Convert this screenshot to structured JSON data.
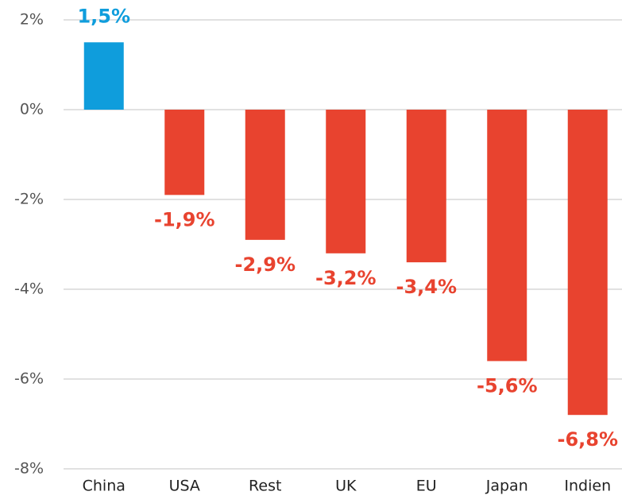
{
  "chart_data": {
    "type": "bar",
    "categories": [
      "China",
      "USA",
      "Rest",
      "UK",
      "EU",
      "Japan",
      "Indien"
    ],
    "values": [
      1.5,
      -1.9,
      -2.9,
      -3.2,
      -3.4,
      -5.6,
      -6.8
    ],
    "value_labels": [
      "1,5%",
      "-1,9%",
      "-2,9%",
      "-3,2%",
      "-3,4%",
      "-5,6%",
      "-6,8%"
    ],
    "colors": [
      "#0f9ddc",
      "#e8432f",
      "#e8432f",
      "#e8432f",
      "#e8432f",
      "#e8432f",
      "#e8432f"
    ],
    "ylim": [
      -8,
      2
    ],
    "yticks": [
      {
        "value": -8,
        "label": "-8%"
      },
      {
        "value": -6,
        "label": "-6%"
      },
      {
        "value": -4,
        "label": "-4%"
      },
      {
        "value": -2,
        "label": "-2%"
      },
      {
        "value": 0,
        "label": "0%"
      },
      {
        "value": 2,
        "label": "2%"
      }
    ],
    "grid": true
  }
}
